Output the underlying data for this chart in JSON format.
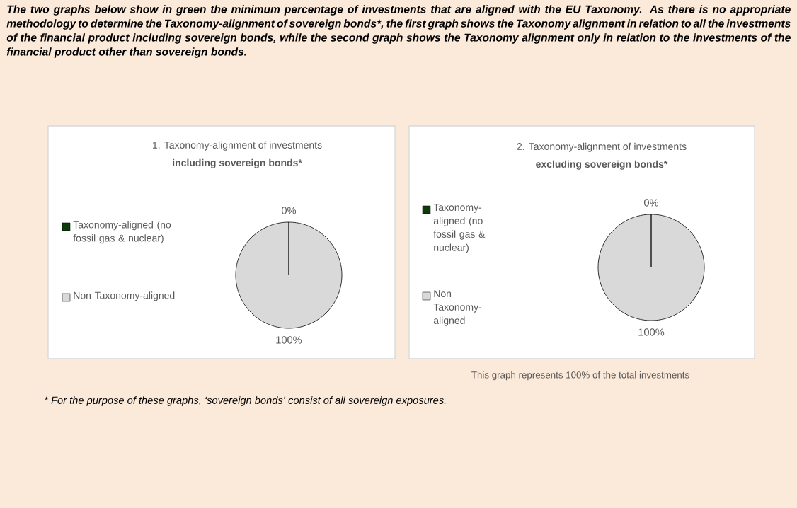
{
  "chart_data": [
    {
      "type": "pie",
      "title": "1. Taxonomy-alignment of investments",
      "subtitle": "including sovereign bonds*",
      "categories": [
        "Taxonomy-aligned (no fossil gas & nuclear)",
        "Non Taxonomy-aligned"
      ],
      "values": [
        0,
        100
      ],
      "colors": [
        "#0b3d0b",
        "#d9d9d9"
      ],
      "value_labels": [
        "0%",
        "100%"
      ],
      "legend": "left",
      "annotations": [
        "The two graphs below show in green the minimum percentage of investments that are aligned with the EU Taxonomy. As there is no appropriate methodology to determine the Taxonomy-alignment of sovereign bonds*, the first graph shows the Taxonomy alignment in relation to all the investments of the financial product including sovereign bonds, while the second graph shows the Taxonomy alignment only in relation to the investments of the financial product other than sovereign bonds.",
        "* For the purpose of these graphs, ‘sovereign bonds’ consist of all sovereign exposures."
      ]
    },
    {
      "type": "pie",
      "title": "2. Taxonomy-alignment of investments",
      "subtitle": "excluding sovereign bonds*",
      "categories": [
        "Taxonomy-aligned (no fossil gas & nuclear)",
        "Non Taxonomy-aligned"
      ],
      "values": [
        0,
        100
      ],
      "colors": [
        "#0b3d0b",
        "#d9d9d9"
      ],
      "value_labels": [
        "0%",
        "100%"
      ],
      "legend": "left",
      "annotations": [
        "This graph represents 100% of the total investments"
      ]
    }
  ]
}
